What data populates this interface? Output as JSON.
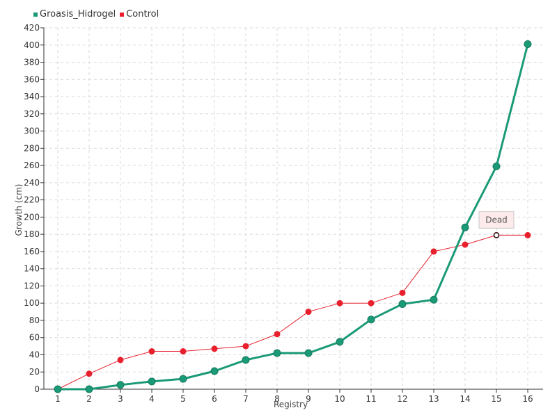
{
  "chart_data": {
    "type": "line",
    "title": "",
    "xlabel": "Registry",
    "ylabel": "Growth (cm)",
    "categories": [
      "1",
      "2",
      "3",
      "4",
      "5",
      "6",
      "7",
      "8",
      "9",
      "10",
      "11",
      "12",
      "13",
      "14",
      "15",
      "16"
    ],
    "ylim": [
      0,
      420
    ],
    "ytick_step": 20,
    "grid": true,
    "legend_position": "top-left",
    "series": [
      {
        "name": "Groasis_Hidrogel",
        "color": "#1a9a77",
        "values": [
          0,
          0,
          5,
          9,
          12,
          21,
          34,
          42,
          42,
          55,
          81,
          99,
          104,
          188,
          259,
          401
        ]
      },
      {
        "name": "Control",
        "color": "#e8202d",
        "values": [
          0,
          18,
          34,
          44,
          44,
          47,
          50,
          64,
          90,
          100,
          100,
          112,
          160,
          168,
          179,
          179
        ]
      }
    ],
    "annotations": [
      {
        "text": "Dead",
        "series": "Control",
        "category": "15"
      }
    ]
  }
}
